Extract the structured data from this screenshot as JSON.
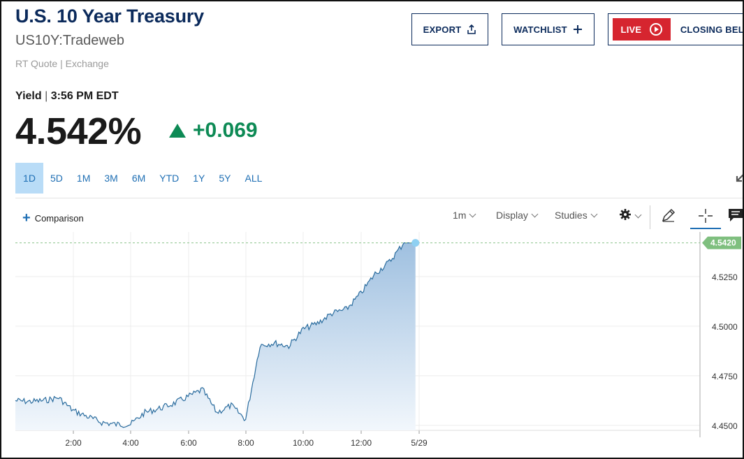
{
  "quote": {
    "title": "U.S. 10 Year Treasury",
    "symbol": "US10Y:Tradeweb",
    "source": "RT Quote | Exchange",
    "yield_label": "Yield",
    "time": "3:56 PM EDT",
    "price": "4.542%",
    "change": "+0.069",
    "change_color": "#0d8a55",
    "direction_icon": "triangle-up-icon"
  },
  "header_buttons": {
    "export": "EXPORT",
    "export_icon": "share-upload-icon",
    "watchlist": "WATCHLIST",
    "watchlist_icon": "plus-icon",
    "live": "LIVE",
    "live_icon": "play-circle-icon",
    "closing": "CLOSING BELL"
  },
  "ranges": {
    "items": [
      "1D",
      "5D",
      "1M",
      "3M",
      "6M",
      "YTD",
      "1Y",
      "5Y",
      "ALL"
    ],
    "selected": "1D"
  },
  "toolbar": {
    "comparison": "Comparison",
    "interval": "1m",
    "display": "Display",
    "studies": "Studies",
    "icons": [
      "gear-icon",
      "pencil-icon",
      "crosshair-icon",
      "comment-icon",
      "expand-icon"
    ]
  },
  "colors": {
    "brand": "#0b2a5b",
    "link": "#1f6fb4",
    "live": "#d6252f",
    "line": "#2a6c9e",
    "last_price_tag": "#7fbf7f"
  },
  "chart_data": {
    "type": "area",
    "x_tick_labels": [
      "2:00",
      "4:00",
      "6:00",
      "8:00",
      "10:00",
      "12:00",
      "5/29"
    ],
    "y_tick_labels": [
      "4.4500",
      "4.4750",
      "4.5000",
      "4.5250"
    ],
    "ylim": [
      4.4475,
      4.5475
    ],
    "last_value_label": "4.5420",
    "grid": true,
    "x": [
      0,
      0.5,
      1,
      1.5,
      2,
      2.5,
      3,
      3.5,
      4,
      4.5,
      5,
      5.5,
      6,
      6.5,
      7,
      7.5,
      8,
      8.5,
      9,
      9.5,
      10,
      10.5,
      11,
      11.5,
      12,
      12.5,
      13,
      13.5,
      13.9
    ],
    "y": [
      4.4625,
      4.462,
      4.4625,
      4.464,
      4.4575,
      4.4545,
      4.4515,
      4.4505,
      4.4505,
      4.4565,
      4.4585,
      4.461,
      4.4645,
      4.468,
      4.4565,
      4.46,
      4.453,
      4.4905,
      4.4915,
      4.49,
      4.4985,
      4.5015,
      4.5065,
      4.5085,
      4.5165,
      4.5265,
      4.5325,
      4.542,
      4.542
    ]
  }
}
